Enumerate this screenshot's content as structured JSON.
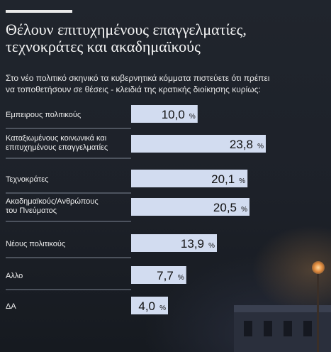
{
  "chart_data": {
    "type": "bar",
    "orientation": "horizontal",
    "title_lines": [
      "Θέλουν επιτυχημένους επαγγελματίες,",
      "τεχνοκράτες και ακαδημαϊκούς"
    ],
    "subtitle_lines": [
      "Στο νέο πολιτικό σκηνικό τα κυβερνητικά κόμματα πιστεύετε ότι πρέπει",
      "να τοποθετήσουν σε θέσεις - κλειδιά της κρατικής διοίκησης κυρίως:"
    ],
    "categories": [
      [
        "Εμπειρους πολιτικούς"
      ],
      [
        "Καταξιωμένους κοινωνικά και",
        "επιτυχημένους επαγγελματίες"
      ],
      [
        "Τεχνοκράτες"
      ],
      [
        "Ακαδημαϊκούς/Ανθρώπους",
        "του Πνεύματος"
      ],
      [
        "Νέους πολιτικούς"
      ],
      [
        "Αλλο"
      ],
      [
        "ΔΑ"
      ]
    ],
    "values": [
      10.0,
      23.8,
      20.1,
      20.5,
      13.9,
      7.7,
      4.0
    ],
    "value_labels": [
      "10,0",
      "23,8",
      "20,1",
      "20,5",
      "13,9",
      "7,7",
      "4,0"
    ],
    "unit": "%",
    "xlim": [
      0,
      23.8
    ],
    "colors": {
      "bar": "#d2dcf0",
      "label_text": "#111111",
      "category_text": "#f0f0f0",
      "separator": "#7d8593"
    }
  }
}
